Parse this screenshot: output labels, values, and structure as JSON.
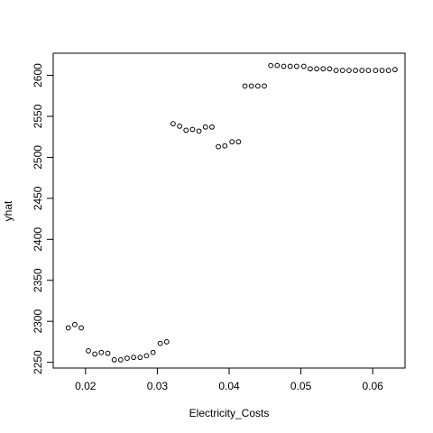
{
  "chart_data": {
    "type": "scatter",
    "title": "",
    "xlabel": "Electricity_Costs",
    "ylabel": "yhat",
    "xlim": [
      0.0155,
      0.0645
    ],
    "ylim": [
      2243,
      2627
    ],
    "xticks": [
      0.02,
      0.03,
      0.04,
      0.05,
      0.06
    ],
    "xtick_labels": [
      "0.02",
      "0.03",
      "0.04",
      "0.05",
      "0.06"
    ],
    "yticks": [
      2250,
      2300,
      2350,
      2400,
      2450,
      2500,
      2550,
      2600
    ],
    "ytick_labels": [
      "2250",
      "2300",
      "2350",
      "2400",
      "2450",
      "2500",
      "2550",
      "2600"
    ],
    "grid": false,
    "legend": "none",
    "marker": "open-circle",
    "color": "#000000",
    "series": [
      {
        "x": [
          0.0176,
          0.0185,
          0.0194,
          0.0204,
          0.0213,
          0.0222,
          0.0231,
          0.024,
          0.0249,
          0.0258,
          0.0267,
          0.0276,
          0.0285,
          0.0294,
          0.0304,
          0.0313,
          0.0322,
          0.0331,
          0.034,
          0.0349,
          0.0358,
          0.0367,
          0.0376,
          0.0385,
          0.0394,
          0.0404,
          0.0413,
          0.0422,
          0.0431,
          0.044,
          0.0449,
          0.0458,
          0.0467,
          0.0476,
          0.0485,
          0.0494,
          0.0504,
          0.0513,
          0.0522,
          0.0531,
          0.054,
          0.0549,
          0.0558,
          0.0567,
          0.0576,
          0.0585,
          0.0594,
          0.0604,
          0.0613,
          0.0622,
          0.0631
        ],
        "y": [
          2292,
          2296,
          2292,
          2264,
          2260,
          2262,
          2261,
          2253,
          2253,
          2255,
          2256,
          2256,
          2258,
          2262,
          2273,
          2275,
          2541,
          2538,
          2533,
          2534,
          2532,
          2537,
          2537,
          2513,
          2514,
          2519,
          2519,
          2587,
          2587,
          2587,
          2587,
          2612,
          2612,
          2611,
          2611,
          2611,
          2611,
          2608,
          2608,
          2608,
          2608,
          2606,
          2606,
          2606,
          2606,
          2606,
          2606,
          2606,
          2606,
          2606,
          2607
        ]
      }
    ]
  }
}
